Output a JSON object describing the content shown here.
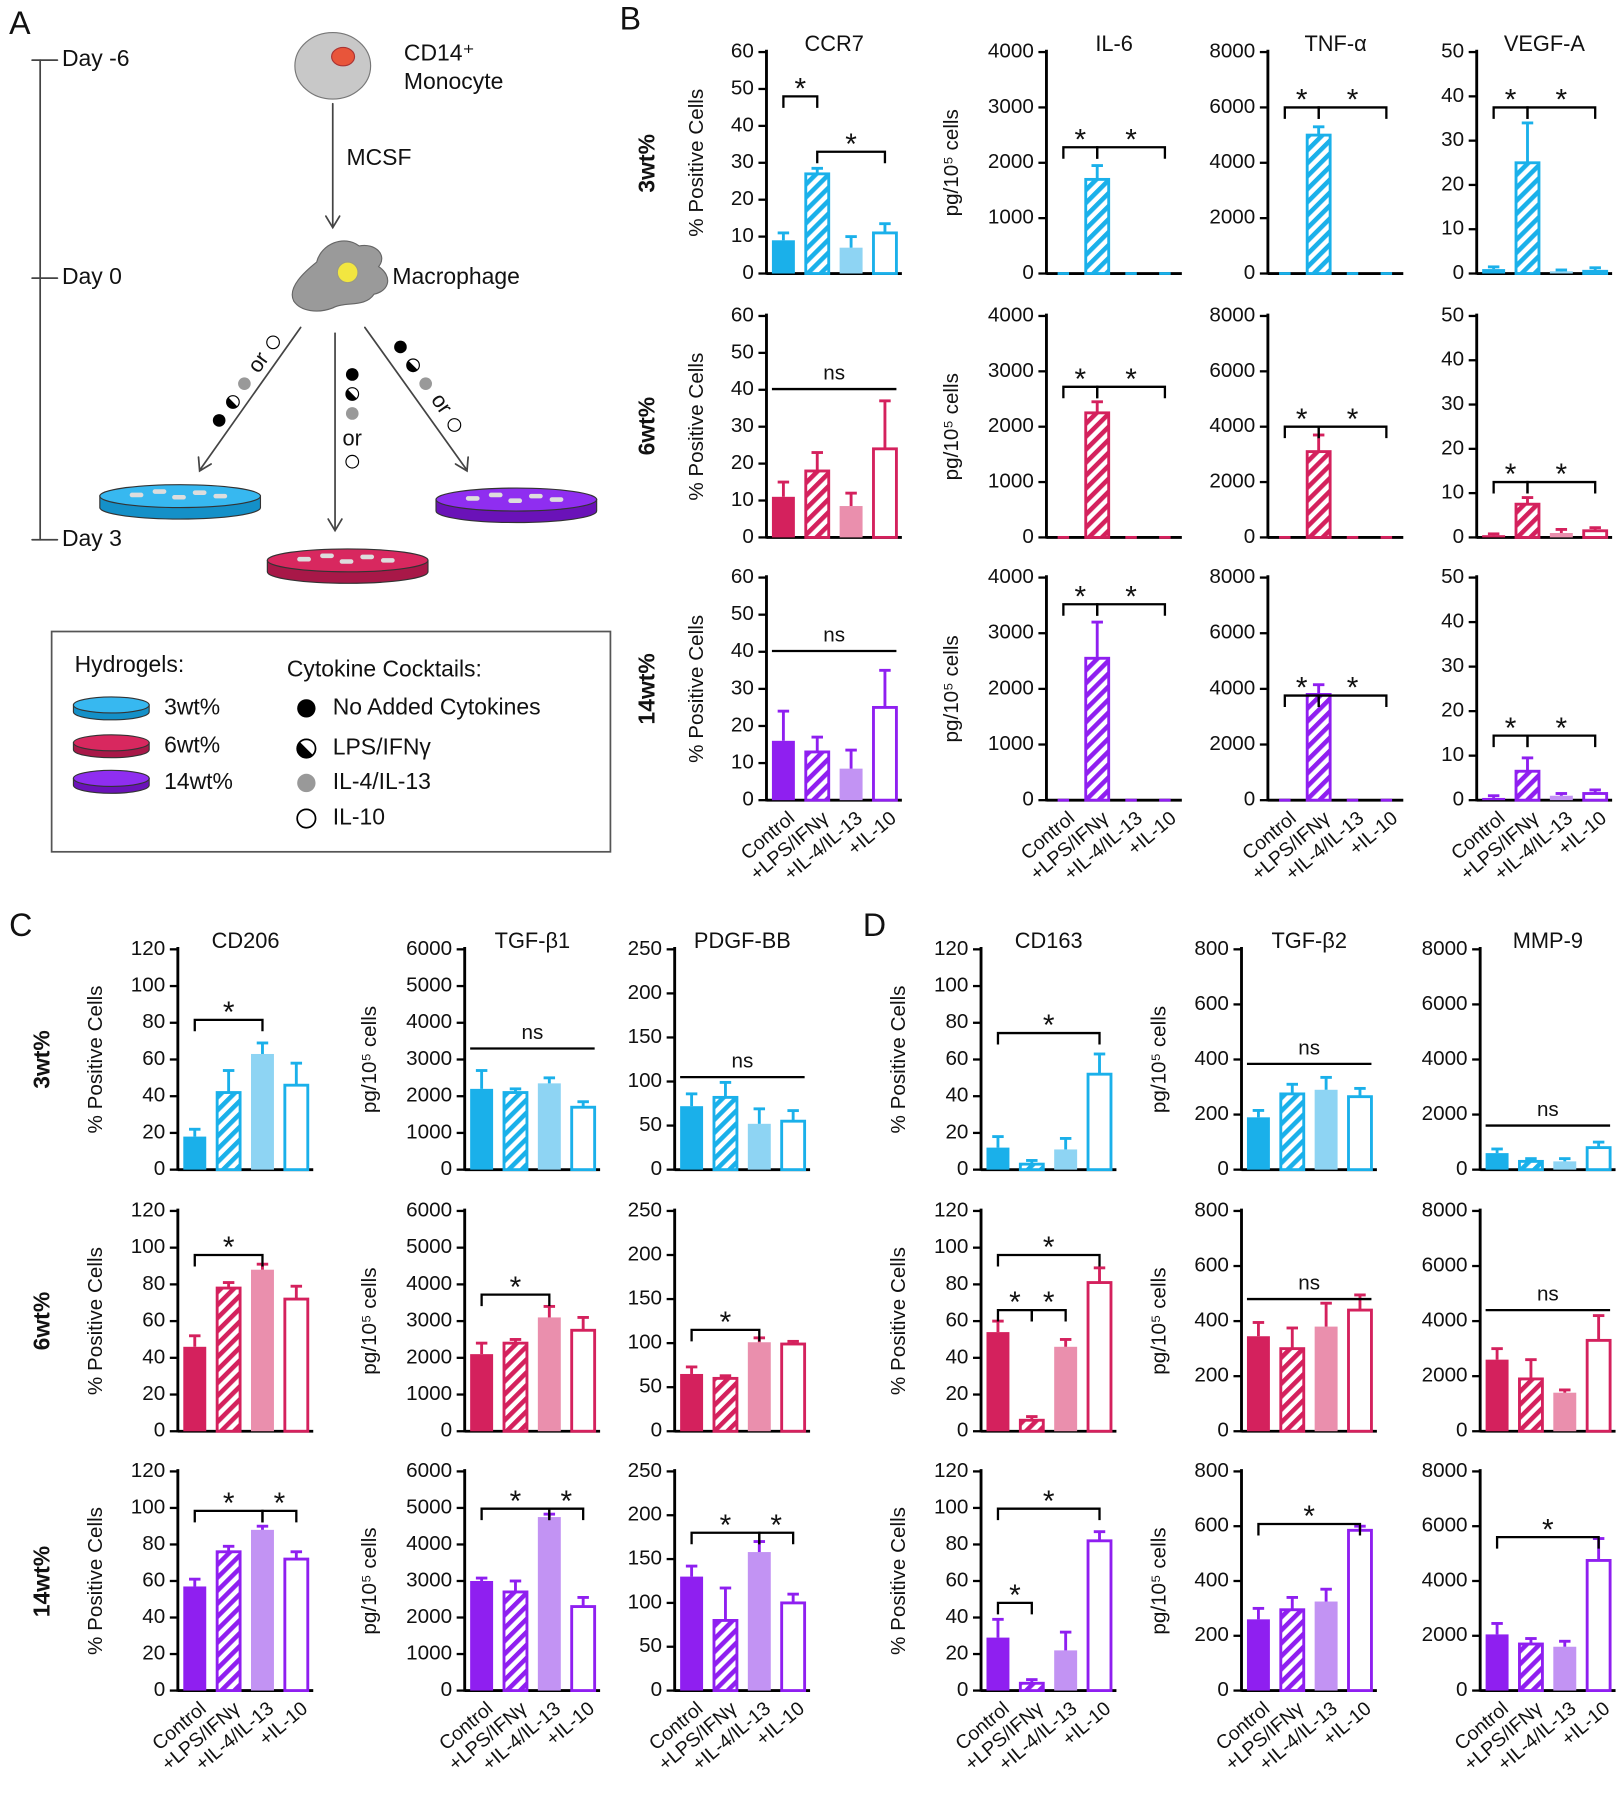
{
  "panel_labels": [
    "A",
    "B",
    "C",
    "D"
  ],
  "row_labels_b": [
    "3wt%",
    "6wt%",
    "14wt%"
  ],
  "row_labels_c": [
    "3wt%",
    "6wt%",
    "14wt%"
  ],
  "diagram": {
    "timeline": [
      "Day -6",
      "Day 0",
      "Day 3"
    ],
    "monocyte": [
      "CD14⁺",
      "Monocyte"
    ],
    "mcsf": "MCSF",
    "macrophage": "Macrophage",
    "or": [
      "or",
      "or",
      "or"
    ],
    "legend": {
      "hydrogels_title": "Hydrogels:",
      "hydrogels": [
        "3wt%",
        "6wt%",
        "14wt%"
      ],
      "cytokines_title": "Cytokine Cocktails:",
      "cytokines": [
        "No Added Cytokines",
        "LPS/IFNγ",
        "IL-4/IL-13",
        "IL-10"
      ]
    }
  },
  "chart_data": [
    {
      "type": "bar",
      "title": "CCR7",
      "ylabel": "% Positive Cells",
      "categories": [
        null,
        null,
        null,
        null
      ],
      "values": [
        9,
        27,
        7,
        11
      ],
      "errors": [
        2,
        1.5,
        3,
        2.5
      ],
      "color": "#1ab0ea",
      "color_light": "#8ed4f3",
      "ylim": [
        0,
        60
      ],
      "yticks": [
        0,
        10,
        20,
        30,
        40,
        50,
        60
      ],
      "annotations": [
        "*",
        "*"
      ]
    },
    {
      "type": "bar",
      "title": "IL-6",
      "ylabel": "pg/10⁵ cells",
      "categories": [
        null,
        null,
        null,
        null
      ],
      "values": [
        0,
        1700,
        0,
        0
      ],
      "errors": [
        0,
        250,
        0,
        0
      ],
      "color": "#1ab0ea",
      "color_light": "#8ed4f3",
      "ylim": [
        0,
        4000
      ],
      "yticks": [
        0,
        1000,
        2000,
        3000,
        4000
      ],
      "annotations": [
        "*",
        "*"
      ]
    },
    {
      "type": "bar",
      "title": "TNF-α",
      "categories": [
        null,
        null,
        null,
        null
      ],
      "values": [
        0,
        5000,
        0,
        0
      ],
      "errors": [
        0,
        300,
        0,
        0
      ],
      "color": "#1ab0ea",
      "color_light": "#8ed4f3",
      "ylim": [
        0,
        8000
      ],
      "yticks": [
        0,
        2000,
        4000,
        6000,
        8000
      ],
      "annotations": [
        "*",
        "*"
      ]
    },
    {
      "type": "bar",
      "title": "VEGF-A",
      "categories": [
        null,
        null,
        null,
        null
      ],
      "values": [
        1,
        25,
        0.5,
        0.5
      ],
      "errors": [
        0.5,
        9,
        0.3,
        0.8
      ],
      "color": "#1ab0ea",
      "color_light": "#8ed4f3",
      "ylim": [
        0,
        50
      ],
      "yticks": [
        0,
        10,
        20,
        30,
        40,
        50
      ],
      "annotations": [
        "*",
        "*"
      ]
    },
    {
      "type": "bar",
      "ylabel": "% Positive Cells",
      "categories": [
        null,
        null,
        null,
        null
      ],
      "values": [
        11,
        18,
        8.5,
        24
      ],
      "errors": [
        4,
        5,
        3.5,
        13
      ],
      "color": "#d4215d",
      "color_light": "#ea8fad",
      "ylim": [
        0,
        60
      ],
      "yticks": [
        0,
        10,
        20,
        30,
        40,
        50,
        60
      ],
      "annotations": [
        "ns"
      ]
    },
    {
      "type": "bar",
      "ylabel": "pg/10⁵ cells",
      "categories": [
        null,
        null,
        null,
        null
      ],
      "values": [
        0,
        2250,
        0,
        0
      ],
      "errors": [
        0,
        200,
        0,
        0
      ],
      "color": "#d4215d",
      "color_light": "#ea8fad",
      "ylim": [
        0,
        4000
      ],
      "yticks": [
        0,
        1000,
        2000,
        3000,
        4000
      ],
      "annotations": [
        "*",
        "*"
      ]
    },
    {
      "type": "bar",
      "categories": [
        null,
        null,
        null,
        null
      ],
      "values": [
        0,
        3100,
        0,
        0
      ],
      "errors": [
        0,
        600,
        0,
        0
      ],
      "color": "#d4215d",
      "color_light": "#ea8fad",
      "ylim": [
        0,
        8000
      ],
      "yticks": [
        0,
        2000,
        4000,
        6000,
        8000
      ],
      "annotations": [
        "*",
        "*"
      ]
    },
    {
      "type": "bar",
      "categories": [
        null,
        null,
        null,
        null
      ],
      "values": [
        0.5,
        7.5,
        1,
        1.5
      ],
      "errors": [
        0.3,
        1.5,
        0.8,
        0.7
      ],
      "color": "#d4215d",
      "color_light": "#ea8fad",
      "ylim": [
        0,
        50
      ],
      "yticks": [
        0,
        10,
        20,
        30,
        40,
        50
      ],
      "annotations": [
        "*",
        "*"
      ]
    },
    {
      "type": "bar",
      "ylabel": "% Positive Cells",
      "categories": [
        "Control",
        "+LPS/IFNγ",
        "+IL-4/IL-13",
        "+IL-10"
      ],
      "values": [
        16,
        13,
        8.5,
        25
      ],
      "errors": [
        8,
        4,
        5,
        10
      ],
      "color": "#8f1ff0",
      "color_light": "#c293f3",
      "ylim": [
        0,
        60
      ],
      "yticks": [
        0,
        10,
        20,
        30,
        40,
        50,
        60
      ],
      "annotations": [
        "ns"
      ]
    },
    {
      "type": "bar",
      "ylabel": "pg/10⁵ cells",
      "categories": [
        "Control",
        "+LPS/IFNγ",
        "+IL-4/IL-13",
        "+IL-10"
      ],
      "values": [
        0,
        2550,
        0,
        0
      ],
      "errors": [
        0,
        650,
        0,
        0
      ],
      "color": "#8f1ff0",
      "color_light": "#c293f3",
      "ylim": [
        0,
        4000
      ],
      "yticks": [
        0,
        1000,
        2000,
        3000,
        4000
      ],
      "annotations": [
        "*",
        "*"
      ]
    },
    {
      "type": "bar",
      "categories": [
        "Control",
        "+LPS/IFNγ",
        "+IL-4/IL-13",
        "+IL-10"
      ],
      "values": [
        0,
        3800,
        0,
        0
      ],
      "errors": [
        0,
        350,
        0,
        0
      ],
      "color": "#8f1ff0",
      "color_light": "#c293f3",
      "ylim": [
        0,
        8000
      ],
      "yticks": [
        0,
        2000,
        4000,
        6000,
        8000
      ],
      "annotations": [
        "*",
        "*"
      ]
    },
    {
      "type": "bar",
      "categories": [
        "Control",
        "+LPS/IFNγ",
        "+IL-4/IL-13",
        "+IL-10"
      ],
      "values": [
        0.5,
        6.5,
        1,
        1.5
      ],
      "errors": [
        0.5,
        3,
        0.5,
        0.8
      ],
      "color": "#8f1ff0",
      "color_light": "#c293f3",
      "ylim": [
        0,
        50
      ],
      "yticks": [
        0,
        10,
        20,
        30,
        40,
        50
      ],
      "annotations": [
        "*",
        "*"
      ]
    },
    {
      "type": "bar",
      "title": "CD206",
      "ylabel": "% Positive Cells",
      "categories": [
        null,
        null,
        null,
        null
      ],
      "values": [
        18,
        42,
        63,
        46
      ],
      "errors": [
        4,
        12,
        6,
        12
      ],
      "color": "#1ab0ea",
      "color_light": "#8ed4f3",
      "ylim": [
        0,
        120
      ],
      "yticks": [
        0,
        20,
        40,
        60,
        80,
        100,
        120
      ],
      "annotations": [
        "*"
      ]
    },
    {
      "type": "bar",
      "title": "TGF-β1",
      "ylabel": "pg/10⁵ cells",
      "categories": [
        null,
        null,
        null,
        null
      ],
      "values": [
        2200,
        2100,
        2350,
        1700
      ],
      "errors": [
        500,
        100,
        150,
        150
      ],
      "color": "#1ab0ea",
      "color_light": "#8ed4f3",
      "ylim": [
        0,
        6000
      ],
      "yticks": [
        0,
        1000,
        2000,
        3000,
        4000,
        5000,
        6000
      ],
      "annotations": [
        "ns"
      ]
    },
    {
      "type": "bar",
      "title": "PDGF-BB",
      "categories": [
        null,
        null,
        null,
        null
      ],
      "values": [
        72,
        82,
        52,
        55
      ],
      "errors": [
        14,
        17,
        17,
        12
      ],
      "color": "#1ab0ea",
      "color_light": "#8ed4f3",
      "ylim": [
        0,
        250
      ],
      "yticks": [
        0,
        50,
        100,
        150,
        200,
        250
      ],
      "annotations": [
        "ns"
      ]
    },
    {
      "type": "bar",
      "ylabel": "% Positive Cells",
      "categories": [
        null,
        null,
        null,
        null
      ],
      "values": [
        46,
        78,
        88,
        72
      ],
      "errors": [
        6,
        3,
        3,
        7
      ],
      "color": "#d4215d",
      "color_light": "#ea8fad",
      "ylim": [
        0,
        120
      ],
      "yticks": [
        0,
        20,
        40,
        60,
        80,
        100,
        120
      ],
      "annotations": [
        "*"
      ]
    },
    {
      "type": "bar",
      "ylabel": "pg/10⁵ cells",
      "categories": [
        null,
        null,
        null,
        null
      ],
      "values": [
        2100,
        2400,
        3100,
        2750
      ],
      "errors": [
        300,
        100,
        300,
        350
      ],
      "color": "#d4215d",
      "color_light": "#ea8fad",
      "ylim": [
        0,
        6000
      ],
      "yticks": [
        0,
        1000,
        2000,
        3000,
        4000,
        5000,
        6000
      ],
      "annotations": [
        "*"
      ]
    },
    {
      "type": "bar",
      "categories": [
        null,
        null,
        null,
        null
      ],
      "values": [
        65,
        60,
        101,
        99
      ],
      "errors": [
        8,
        3,
        5,
        3
      ],
      "color": "#d4215d",
      "color_light": "#ea8fad",
      "ylim": [
        0,
        250
      ],
      "yticks": [
        0,
        50,
        100,
        150,
        200,
        250
      ],
      "annotations": [
        "*"
      ]
    },
    {
      "type": "bar",
      "ylabel": "% Positive Cells",
      "categories": [
        "Control",
        "+LPS/IFNγ",
        "+IL-4/IL-13",
        "+IL-10"
      ],
      "values": [
        57,
        76,
        88,
        72
      ],
      "errors": [
        4,
        3,
        2,
        4
      ],
      "color": "#8f1ff0",
      "color_light": "#c293f3",
      "ylim": [
        0,
        120
      ],
      "yticks": [
        0,
        20,
        40,
        60,
        80,
        100,
        120
      ],
      "annotations": [
        "*",
        "*"
      ]
    },
    {
      "type": "bar",
      "ylabel": "pg/10⁵ cells",
      "categories": [
        "Control",
        "+LPS/IFNγ",
        "+IL-4/IL-13",
        "+IL-10"
      ],
      "values": [
        3000,
        2700,
        4750,
        2300
      ],
      "errors": [
        80,
        300,
        80,
        250
      ],
      "color": "#8f1ff0",
      "color_light": "#c293f3",
      "ylim": [
        0,
        6000
      ],
      "yticks": [
        0,
        1000,
        2000,
        3000,
        4000,
        5000,
        6000
      ],
      "annotations": [
        "*",
        "*"
      ]
    },
    {
      "type": "bar",
      "categories": [
        "Control",
        "+LPS/IFNγ",
        "+IL-4/IL-13",
        "+IL-10"
      ],
      "values": [
        130,
        80,
        158,
        100
      ],
      "errors": [
        12,
        37,
        12,
        10
      ],
      "color": "#8f1ff0",
      "color_light": "#c293f3",
      "ylim": [
        0,
        250
      ],
      "yticks": [
        0,
        50,
        100,
        150,
        200,
        250
      ],
      "annotations": [
        "*",
        "*"
      ]
    },
    {
      "type": "bar",
      "title": "CD163",
      "ylabel": "% Positive Cells",
      "categories": [
        null,
        null,
        null,
        null
      ],
      "values": [
        12,
        3,
        11,
        52
      ],
      "errors": [
        6,
        2,
        6,
        11
      ],
      "color": "#1ab0ea",
      "color_light": "#8ed4f3",
      "ylim": [
        0,
        120
      ],
      "yticks": [
        0,
        20,
        40,
        60,
        80,
        100,
        120
      ],
      "annotations": [
        "*"
      ]
    },
    {
      "type": "bar",
      "title": "TGF-β2",
      "ylabel": "pg/10⁵ cells",
      "categories": [
        null,
        null,
        null,
        null
      ],
      "values": [
        190,
        275,
        290,
        265
      ],
      "errors": [
        25,
        35,
        45,
        30
      ],
      "color": "#1ab0ea",
      "color_light": "#8ed4f3",
      "ylim": [
        0,
        800
      ],
      "yticks": [
        0,
        200,
        400,
        600,
        800
      ],
      "annotations": [
        "ns"
      ]
    },
    {
      "type": "bar",
      "title": "MMP-9",
      "categories": [
        null,
        null,
        null,
        null
      ],
      "values": [
        600,
        300,
        300,
        800
      ],
      "errors": [
        150,
        100,
        100,
        200
      ],
      "color": "#1ab0ea",
      "color_light": "#8ed4f3",
      "ylim": [
        0,
        8000
      ],
      "yticks": [
        0,
        2000,
        4000,
        6000,
        8000
      ],
      "annotations": [
        "ns"
      ]
    },
    {
      "type": "bar",
      "ylabel": "% Positive Cells",
      "categories": [
        null,
        null,
        null,
        null
      ],
      "values": [
        54,
        6,
        46,
        81
      ],
      "errors": [
        6,
        2,
        4,
        8
      ],
      "color": "#d4215d",
      "color_light": "#ea8fad",
      "ylim": [
        0,
        120
      ],
      "yticks": [
        0,
        20,
        40,
        60,
        80,
        100,
        120
      ],
      "annotations": [
        "*",
        "*",
        "*"
      ]
    },
    {
      "type": "bar",
      "ylabel": "pg/10⁵ cells",
      "categories": [
        null,
        null,
        null,
        null
      ],
      "values": [
        345,
        300,
        380,
        440
      ],
      "errors": [
        50,
        75,
        85,
        55
      ],
      "color": "#d4215d",
      "color_light": "#ea8fad",
      "ylim": [
        0,
        800
      ],
      "yticks": [
        0,
        200,
        400,
        600,
        800
      ],
      "annotations": [
        "ns"
      ]
    },
    {
      "type": "bar",
      "categories": [
        null,
        null,
        null,
        null
      ],
      "values": [
        2600,
        1900,
        1400,
        3300
      ],
      "errors": [
        400,
        700,
        100,
        900
      ],
      "color": "#d4215d",
      "color_light": "#ea8fad",
      "ylim": [
        0,
        8000
      ],
      "yticks": [
        0,
        2000,
        4000,
        6000,
        8000
      ],
      "annotations": [
        "ns"
      ]
    },
    {
      "type": "bar",
      "ylabel": "% Positive Cells",
      "categories": [
        "Control",
        "+LPS/IFNγ",
        "+IL-4/IL-13",
        "+IL-10"
      ],
      "values": [
        29,
        4,
        22,
        82
      ],
      "errors": [
        10,
        2,
        10,
        5
      ],
      "color": "#8f1ff0",
      "color_light": "#c293f3",
      "ylim": [
        0,
        120
      ],
      "yticks": [
        0,
        20,
        40,
        60,
        80,
        100,
        120
      ],
      "annotations": [
        "*",
        "*"
      ]
    },
    {
      "type": "bar",
      "ylabel": "pg/10⁵ cells",
      "categories": [
        "Control",
        "+LPS/IFNγ",
        "+IL-4/IL-13",
        "+IL-10"
      ],
      "values": [
        260,
        295,
        325,
        585
      ],
      "errors": [
        40,
        45,
        45,
        15
      ],
      "color": "#8f1ff0",
      "color_light": "#c293f3",
      "ylim": [
        0,
        800
      ],
      "yticks": [
        0,
        200,
        400,
        600,
        800
      ],
      "annotations": [
        "*"
      ]
    },
    {
      "type": "bar",
      "categories": [
        "Control",
        "+LPS/IFNγ",
        "+IL-4/IL-13",
        "+IL-10"
      ],
      "values": [
        2050,
        1700,
        1600,
        4750
      ],
      "errors": [
        400,
        200,
        200,
        800
      ],
      "color": "#8f1ff0",
      "color_light": "#c293f3",
      "ylim": [
        0,
        8000
      ],
      "yticks": [
        0,
        2000,
        4000,
        6000,
        8000
      ],
      "annotations": [
        "*"
      ]
    }
  ]
}
